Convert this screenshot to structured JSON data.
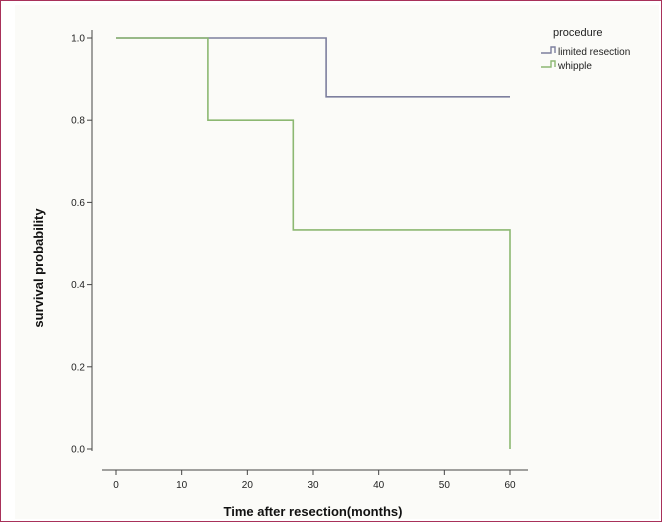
{
  "chart_data": {
    "type": "line",
    "step": true,
    "xlabel": "Time after resection(months)",
    "ylabel": "survival probability",
    "xlim": [
      0,
      60
    ],
    "ylim": [
      0,
      1.0
    ],
    "xticks": [
      "0",
      "10",
      "20",
      "30",
      "40",
      "50",
      "60"
    ],
    "yticks": [
      "0.0",
      "0.2",
      "0.4",
      "0.6",
      "0.8",
      "1.0"
    ],
    "grid": false,
    "legend": {
      "title": "procedure",
      "position": "top-right"
    },
    "series": [
      {
        "name": "limited resection",
        "color": "#7d7f9e",
        "points": [
          [
            0,
            1.0
          ],
          [
            32,
            1.0
          ],
          [
            32,
            0.857
          ],
          [
            60,
            0.857
          ]
        ]
      },
      {
        "name": "whipple",
        "color": "#8cb872",
        "points": [
          [
            0,
            1.0
          ],
          [
            14,
            1.0
          ],
          [
            14,
            0.8
          ],
          [
            27,
            0.8
          ],
          [
            27,
            0.533
          ],
          [
            60,
            0.533
          ],
          [
            60,
            0.0
          ]
        ]
      }
    ]
  }
}
